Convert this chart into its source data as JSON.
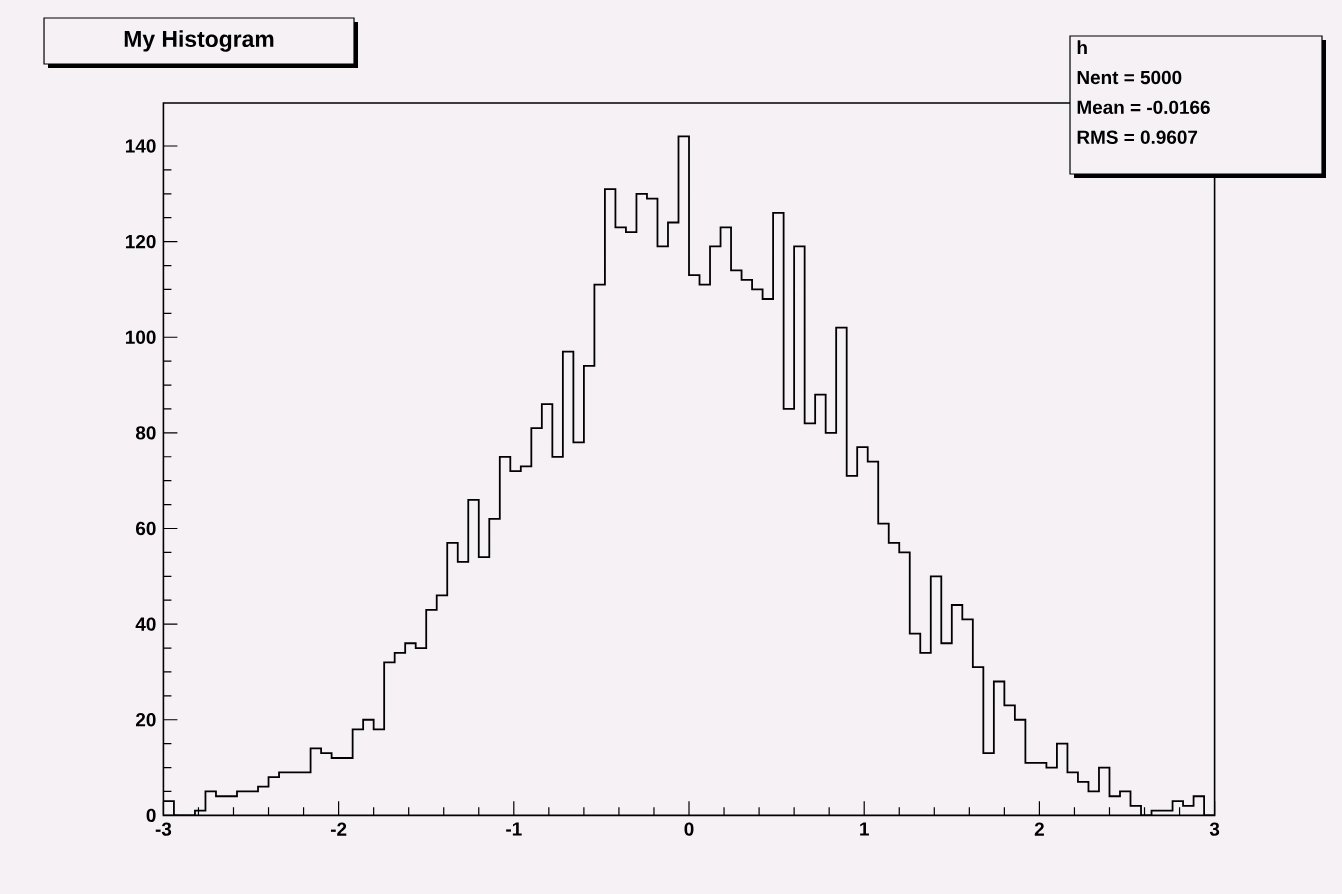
{
  "chart_data": {
    "type": "histogram",
    "title": "My Histogram",
    "bins": [
      -3,
      -2.94,
      -2.88,
      -2.82,
      -2.76,
      -2.7,
      -2.64,
      -2.58,
      -2.52,
      -2.46,
      -2.4,
      -2.34,
      -2.28,
      -2.22,
      -2.16,
      -2.1,
      -2.04,
      -1.98,
      -1.92,
      -1.86,
      -1.8,
      -1.74,
      -1.68,
      -1.62,
      -1.56,
      -1.5,
      -1.44,
      -1.38,
      -1.32,
      -1.26,
      -1.2,
      -1.14,
      -1.08,
      -1.02,
      -0.96,
      -0.9,
      -0.84,
      -0.78,
      -0.72,
      -0.66,
      -0.6,
      -0.54,
      -0.48,
      -0.42,
      -0.36,
      -0.3,
      -0.24,
      -0.18,
      -0.12,
      -0.06,
      0,
      0.06,
      0.12,
      0.18,
      0.24,
      0.3,
      0.36,
      0.42,
      0.48,
      0.54,
      0.6,
      0.66,
      0.72,
      0.78,
      0.84,
      0.9,
      0.96,
      1.02,
      1.08,
      1.14,
      1.2,
      1.26,
      1.32,
      1.38,
      1.44,
      1.5,
      1.56,
      1.62,
      1.68,
      1.74,
      1.8,
      1.86,
      1.92,
      1.98,
      2.04,
      2.1,
      2.16,
      2.22,
      2.28,
      2.34,
      2.4,
      2.46,
      2.52,
      2.58,
      2.64,
      2.7,
      2.76,
      2.82,
      2.88,
      2.94,
      3
    ],
    "values": [
      3,
      0,
      0,
      1,
      5,
      4,
      4,
      5,
      5,
      6,
      8,
      9,
      9,
      9,
      14,
      13,
      12,
      12,
      18,
      20,
      18,
      32,
      34,
      36,
      35,
      43,
      46,
      57,
      53,
      66,
      54,
      62,
      75,
      72,
      73,
      81,
      86,
      75,
      97,
      78,
      94,
      111,
      131,
      123,
      122,
      130,
      129,
      119,
      124,
      142,
      113,
      111,
      119,
      123,
      114,
      112,
      110,
      108,
      126,
      85,
      119,
      82,
      88,
      80,
      102,
      71,
      77,
      74,
      61,
      57,
      55,
      38,
      34,
      50,
      36,
      44,
      41,
      31,
      13,
      28,
      23,
      20,
      11,
      11,
      10,
      15,
      9,
      7,
      5,
      10,
      4,
      5,
      2,
      0,
      1,
      1,
      3,
      2,
      4,
      0
    ],
    "color": "#000000",
    "xlim": [
      -3,
      3
    ],
    "ylim": [
      0,
      149
    ],
    "xticks": [
      -3,
      -2,
      -1,
      0,
      1,
      2,
      3
    ],
    "yticks": [
      0,
      20,
      40,
      60,
      80,
      100,
      120,
      140
    ],
    "annotations": [
      "h",
      "Nent = 5000",
      "Mean  = -0.0166",
      "RMS   = 0.9607"
    ]
  }
}
